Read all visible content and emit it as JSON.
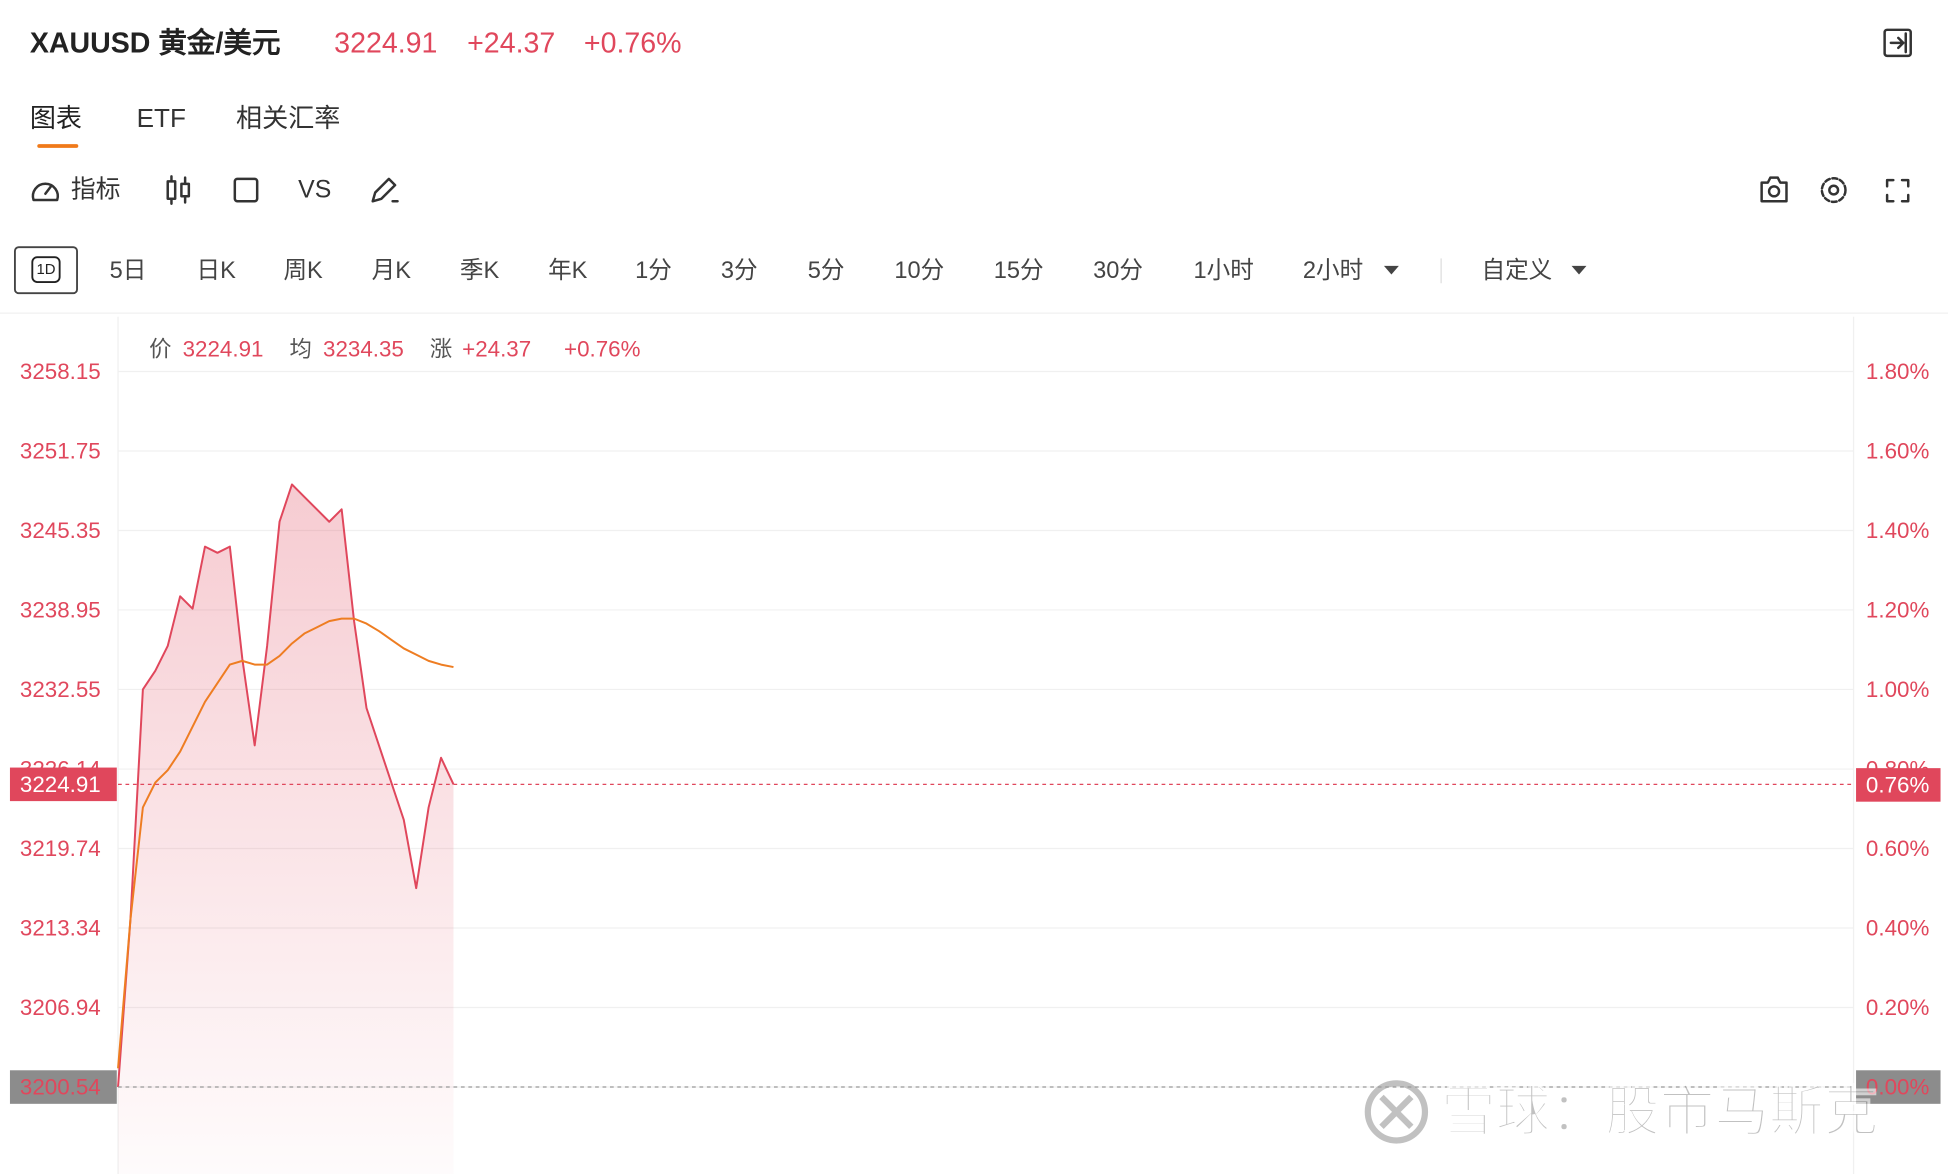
{
  "header": {
    "symbol": "XAUUSD 黄金/美元",
    "price": "3224.91",
    "change": "+24.37",
    "change_percent": "+0.76%"
  },
  "tabs": [
    "图表",
    "ETF",
    "相关汇率"
  ],
  "toolbar": {
    "indicator": "指标",
    "compare": "VS"
  },
  "periods": [
    "1D",
    "5日",
    "日K",
    "周K",
    "月K",
    "季K",
    "年K",
    "1分",
    "3分",
    "5分",
    "10分",
    "15分",
    "30分",
    "1小时",
    "2小时",
    "自定义"
  ],
  "chart_data": {
    "type": "line",
    "info": {
      "change_label": "涨",
      "change": "+24.37",
      "change_percent": "+0.76%"
    },
    "categories": [
      null,
      null,
      null,
      null,
      null,
      null,
      null,
      null,
      null,
      null,
      null,
      null,
      null,
      null,
      null,
      null,
      null,
      null,
      null,
      null,
      null,
      null,
      null,
      null,
      null,
      null,
      null,
      null,
      null,
      null,
      null,
      null,
      null,
      null,
      null,
      null,
      null,
      null,
      null,
      null,
      null,
      null,
      null,
      null,
      null,
      null,
      null,
      null,
      null,
      null,
      null,
      null,
      null,
      null,
      null,
      null,
      null,
      null,
      null,
      null,
      null,
      null,
      null,
      null,
      null,
      null,
      null,
      null,
      null,
      null,
      null,
      null,
      null,
      null,
      null,
      null,
      null,
      null,
      null,
      null,
      null,
      null,
      null,
      null,
      null,
      null,
      null,
      null,
      null,
      null,
      null,
      null,
      null,
      null,
      null,
      null,
      null,
      null,
      null,
      null,
      null,
      null,
      null,
      null,
      null,
      null,
      null,
      null,
      null,
      null,
      null,
      null,
      null,
      null,
      null,
      null,
      null,
      null,
      null,
      null,
      null,
      null,
      null,
      null,
      null,
      null,
      null,
      null,
      null,
      null,
      null,
      null,
      null,
      null,
      null
    ],
    "series": [
      {
        "name": "价",
        "color": "#e0475c",
        "area": true,
        "values": [
          3200.54,
          3214.05,
          3232.55,
          3234.05,
          3236.05,
          3240.05,
          3239.05,
          3244.05,
          3243.55,
          3244.05,
          3235.05,
          3228.05,
          3236.05,
          3246.05,
          3249.05,
          3248.05,
          3247.05,
          3246.05,
          3247.05,
          3238.05,
          3231.05,
          3228.05,
          3225.05,
          3222.05,
          3216.55,
          3223.05,
          3227.05,
          3224.91,
          null,
          null,
          null,
          null,
          null,
          null,
          null,
          null,
          null,
          null,
          null,
          null,
          null,
          null,
          null,
          null,
          null,
          null,
          null,
          null,
          null,
          null,
          null,
          null,
          null,
          null,
          null,
          null,
          null,
          null,
          null,
          null,
          null,
          null,
          null,
          null,
          null,
          null,
          null,
          null,
          null,
          null,
          null,
          null,
          null,
          null,
          null,
          null,
          null,
          null,
          null,
          null,
          null,
          null,
          null,
          null,
          null,
          null,
          null,
          null,
          null,
          null,
          null,
          null,
          null,
          null,
          null,
          null,
          null,
          null,
          null,
          null,
          null,
          null,
          null,
          null,
          null,
          null,
          null,
          null,
          null,
          null,
          null,
          null,
          null,
          null,
          null,
          null,
          null,
          null,
          null,
          null,
          null,
          null,
          null,
          null,
          null,
          null,
          null,
          null,
          null,
          null,
          null,
          null,
          null,
          null,
          null
        ]
      },
      {
        "name": "均",
        "color": "#ee7d22",
        "values": [
          3202.05,
          3214.05,
          3223.05,
          3225.05,
          3226.05,
          3227.55,
          3229.55,
          3231.55,
          3233.05,
          3234.55,
          3234.85,
          3234.55,
          3234.55,
          3235.25,
          3236.25,
          3237.05,
          3237.55,
          3238.05,
          3238.25,
          3238.25,
          3237.85,
          3237.25,
          3236.55,
          3235.85,
          3235.35,
          3234.85,
          3234.55,
          3234.35,
          null,
          null,
          null,
          null,
          null,
          null,
          null,
          null,
          null,
          null,
          null,
          null,
          null,
          null,
          null,
          null,
          null,
          null,
          null,
          null,
          null,
          null,
          null,
          null,
          null,
          null,
          null,
          null,
          null,
          null,
          null,
          null,
          null,
          null,
          null,
          null,
          null,
          null,
          null,
          null,
          null,
          null,
          null,
          null,
          null,
          null,
          null,
          null,
          null,
          null,
          null,
          null,
          null,
          null,
          null,
          null,
          null,
          null,
          null,
          null,
          null,
          null,
          null,
          null,
          null,
          null,
          null,
          null,
          null,
          null,
          null,
          null,
          null,
          null,
          null,
          null,
          null,
          null,
          null,
          null,
          null,
          null,
          null,
          null,
          null,
          null,
          null,
          null,
          null,
          null,
          null,
          null,
          null,
          null,
          null,
          null,
          null,
          null,
          null,
          null,
          null,
          null,
          null,
          null,
          null,
          null,
          null
        ]
      }
    ],
    "ylim": [
      3193.54,
      3262.55
    ],
    "yticks": [
      3200.54,
      3206.94,
      3213.34,
      3219.74,
      3226.14,
      3232.55,
      3238.95,
      3245.35,
      3251.75,
      3258.15
    ],
    "y2lim": [
      -0.2187,
      1.9375
    ],
    "y2ticks": [
      {
        "value": 0,
        "label": "0.00%"
      },
      {
        "value": 0.2,
        "label": "0.20%"
      },
      {
        "value": 0.4,
        "label": "0.40%"
      },
      {
        "value": 0.6,
        "label": "0.60%"
      },
      {
        "value": 0.8,
        "label": "0.80%"
      },
      {
        "value": 1.0,
        "label": "1.00%"
      },
      {
        "value": 1.2,
        "label": "1.20%"
      },
      {
        "value": 1.4,
        "label": "1.40%"
      },
      {
        "value": 1.6,
        "label": "1.60%"
      },
      {
        "value": 1.8,
        "label": "1.80%"
      }
    ],
    "last_price": 3224.91,
    "last_change": {
      "value": 0.76,
      "label": "0.76%"
    },
    "grid": true
  },
  "watermark": "雪球：股市马斯克"
}
